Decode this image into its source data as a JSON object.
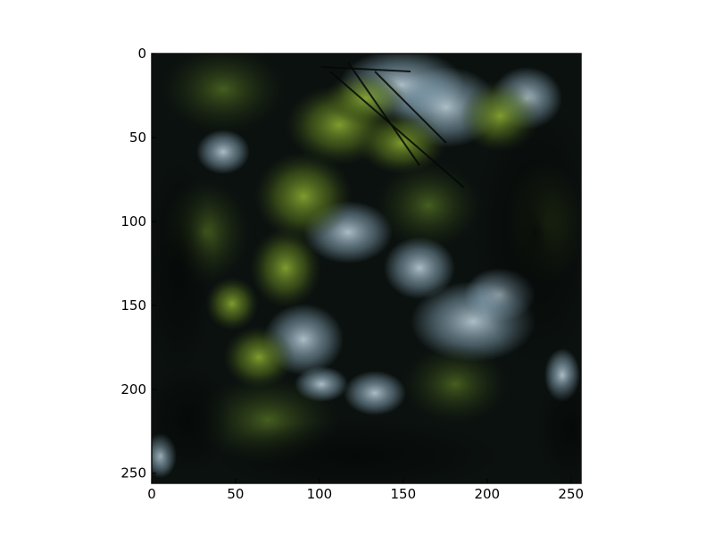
{
  "figure": {
    "background_color": "#ffffff"
  },
  "image": {
    "subject": "forest canopy viewed from below",
    "palette": {
      "dark": "#0b110f",
      "foliage": "#6f8f26",
      "foliage_dark": "#2c3b15",
      "sky": "#a9c3d4",
      "frame": "#111111"
    }
  },
  "axes": {
    "x_ticks": [
      {
        "value": 0,
        "label": "0"
      },
      {
        "value": 50,
        "label": "50"
      },
      {
        "value": 100,
        "label": "100"
      },
      {
        "value": 150,
        "label": "150"
      },
      {
        "value": 200,
        "label": "200"
      },
      {
        "value": 250,
        "label": "250"
      }
    ],
    "y_ticks": [
      {
        "value": 0,
        "label": "0"
      },
      {
        "value": 50,
        "label": "50"
      },
      {
        "value": 100,
        "label": "100"
      },
      {
        "value": 150,
        "label": "150"
      },
      {
        "value": 200,
        "label": "200"
      },
      {
        "value": 250,
        "label": "250"
      }
    ],
    "x_range": [
      0,
      256
    ],
    "y_range": [
      0,
      256
    ],
    "y_inverted": true
  }
}
